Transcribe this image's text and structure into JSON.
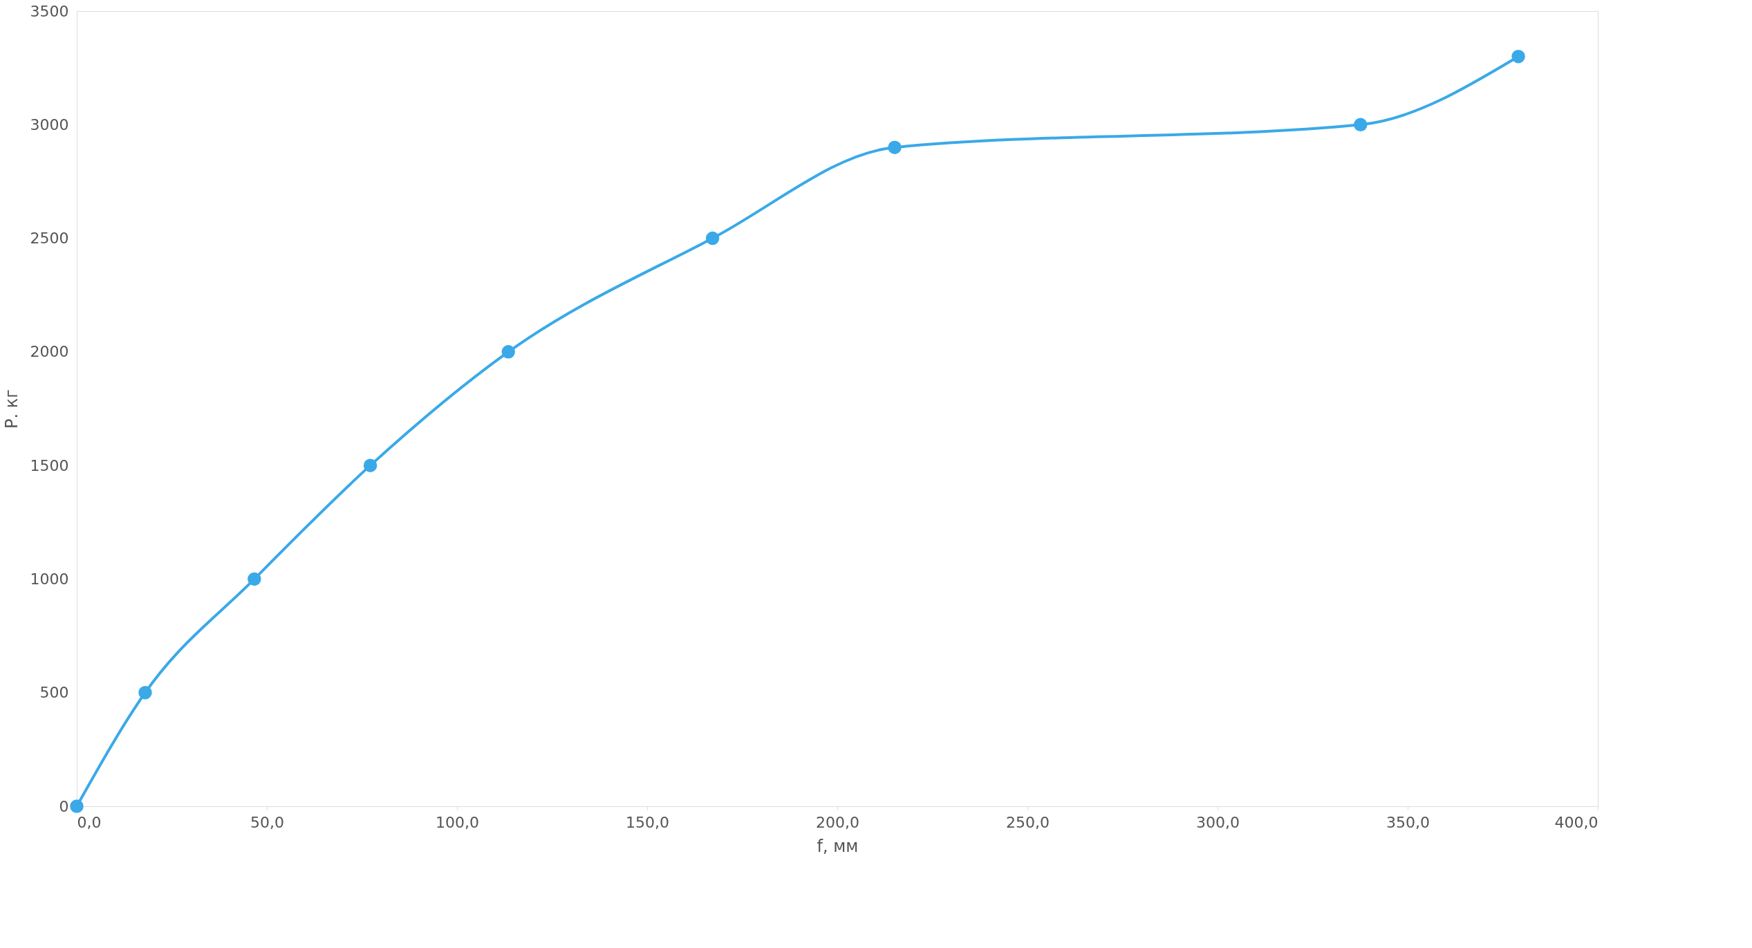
{
  "chart_data": {
    "type": "line",
    "xlabel": "f, мм",
    "ylabel": "Р. кг",
    "x": [
      0,
      18,
      46.7,
      77.2,
      113.5,
      167.2,
      215.1,
      337.6,
      379.1
    ],
    "series": [
      {
        "color": "#3aa9e8",
        "values": [
          0,
          500,
          1000,
          1500,
          2000,
          2500,
          2900,
          3000,
          3300
        ]
      }
    ],
    "xlim": [
      0,
      400
    ],
    "ylim": [
      0,
      3500
    ],
    "xticks": [
      {
        "value": 0,
        "label": "0,0"
      },
      {
        "value": 50,
        "label": "50,0"
      },
      {
        "value": 100,
        "label": "100,0"
      },
      {
        "value": 150,
        "label": "150,0"
      },
      {
        "value": 200,
        "label": "200,0"
      },
      {
        "value": 250,
        "label": "250,0"
      },
      {
        "value": 300,
        "label": "300,0"
      },
      {
        "value": 350,
        "label": "350,0"
      },
      {
        "value": 400,
        "label": "400,0"
      }
    ],
    "yticks": [
      0,
      500,
      1000,
      1500,
      2000,
      2500,
      3000,
      3500
    ],
    "grid": false,
    "marker": "circle",
    "line_style": "solid"
  }
}
